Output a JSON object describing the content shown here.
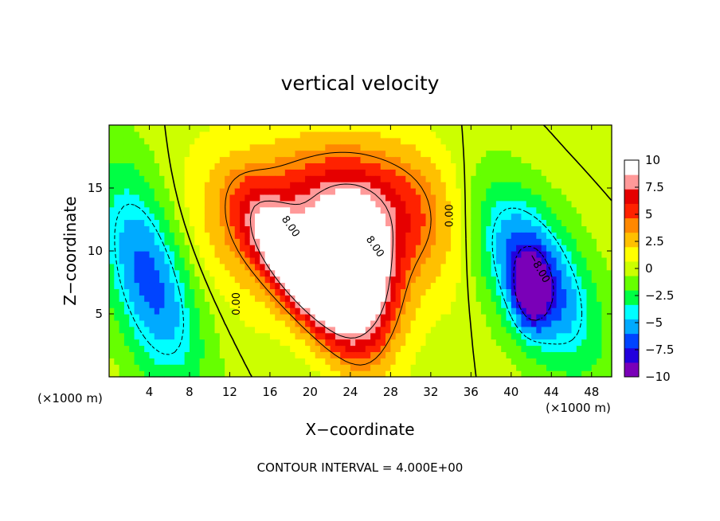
{
  "chart_data": {
    "type": "heatmap",
    "title": "vertical velocity",
    "xlabel": "X−coordinate",
    "ylabel": "Z−coordinate",
    "x_units": "(×1000 m)",
    "x_units_right": "(×1000 m)",
    "xlim": [
      0,
      50
    ],
    "ylim": [
      0,
      20
    ],
    "x_ticks": [
      4,
      8,
      12,
      16,
      20,
      24,
      28,
      32,
      36,
      40,
      44,
      48
    ],
    "y_ticks": [
      5,
      10,
      15
    ],
    "colorbar": {
      "range": [
        -10,
        10
      ],
      "ticks": [
        {
          "value": 10,
          "label": "10"
        },
        {
          "value": 7.5,
          "label": "7.5"
        },
        {
          "value": 5,
          "label": "5"
        },
        {
          "value": 2.5,
          "label": "2.5"
        },
        {
          "value": 0,
          "label": "0"
        },
        {
          "value": -2.5,
          "label": "−2.5"
        },
        {
          "value": -5,
          "label": "−5"
        },
        {
          "value": -7.5,
          "label": "−7.5"
        },
        {
          "value": -10,
          "label": "−10"
        }
      ],
      "colors": [
        "#7a00b8",
        "#2200dd",
        "#0044ff",
        "#00aaff",
        "#00ffff",
        "#00ff44",
        "#66ff00",
        "#ccff00",
        "#ffff00",
        "#ffc000",
        "#ff8800",
        "#ff2200",
        "#e60000",
        "#ff9999",
        "#ffffff"
      ]
    },
    "contour_interval_text": "CONTOUR INTERVAL = 4.000E+00",
    "contour_labels": [
      {
        "text": "8.00",
        "x": 17.8,
        "z": 11.8,
        "angle": 55
      },
      {
        "text": "8.00",
        "x": 26.2,
        "z": 10.2,
        "angle": 55
      },
      {
        "text": "0.00",
        "x": 13.0,
        "z": 5.8,
        "angle": -90
      },
      {
        "text": "0.00",
        "x": 34.2,
        "z": 12.8,
        "angle": -90
      },
      {
        "text": "−8.00",
        "x": 42.5,
        "z": 8.5,
        "angle": 60
      }
    ],
    "field_features": [
      {
        "x": 22.0,
        "z": 12.0,
        "amp": 5.0,
        "sx": 9.0,
        "sz": 4.5
      },
      {
        "x": 19.0,
        "z": 8.0,
        "amp": 9.0,
        "sx": 2.2,
        "sz": 4.0,
        "tilt": 0.7
      },
      {
        "x": 25.0,
        "z": 7.5,
        "amp": 10.0,
        "sx": 2.4,
        "sz": 3.8,
        "tilt": 0.15
      },
      {
        "x": 24.0,
        "z": 13.5,
        "amp": 3.5,
        "sx": 7.0,
        "sz": 3.5
      },
      {
        "x": 4.0,
        "z": 8.0,
        "amp": -7.0,
        "sx": 3.0,
        "sz": 6.0,
        "tilt": 0.3
      },
      {
        "x": 42.0,
        "z": 8.5,
        "amp": -8.0,
        "sx": 3.5,
        "sz": 5.0,
        "tilt": 0.5
      },
      {
        "x": 42.0,
        "z": 6.8,
        "amp": -6.0,
        "sx": 1.2,
        "sz": 2.0
      }
    ]
  }
}
